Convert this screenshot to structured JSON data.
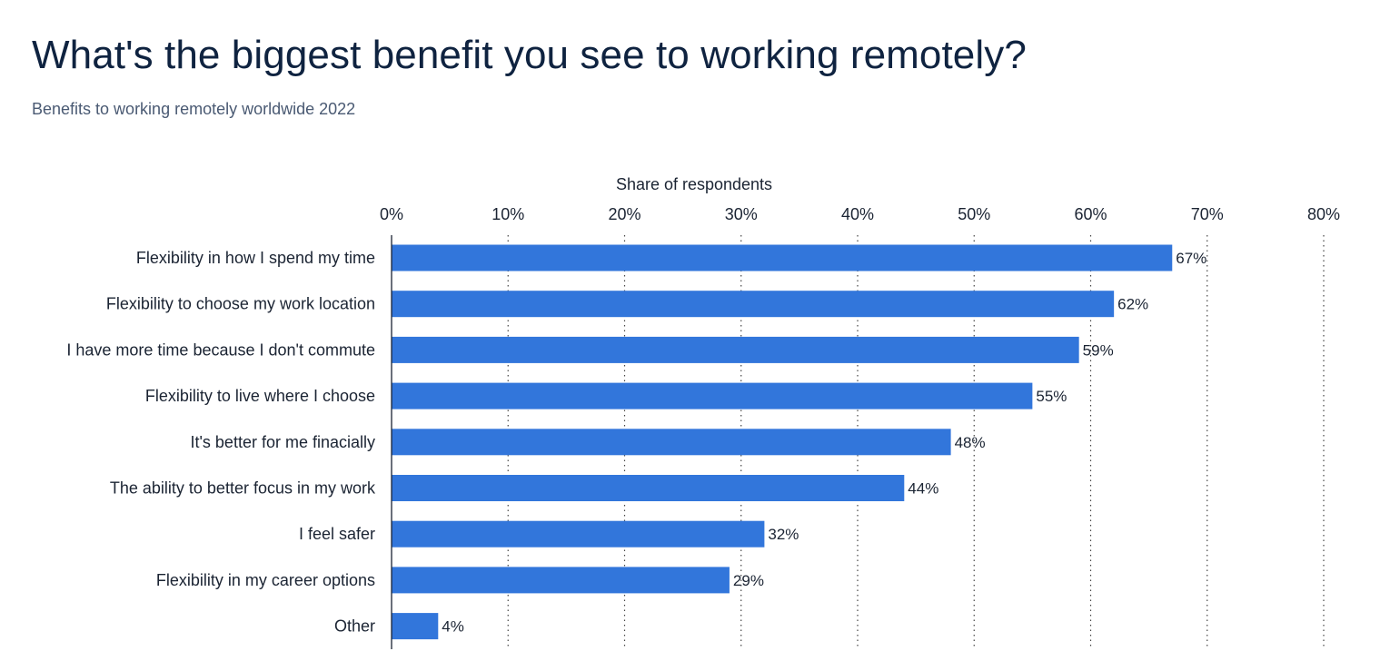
{
  "header": {
    "title": "What's the biggest benefit you see to working remotely?",
    "subtitle": "Benefits to working remotely worldwide 2022"
  },
  "colors": {
    "bar": "#3276db",
    "text": "#1b2433",
    "title": "#0f2340",
    "subtitle": "#4a5a73",
    "grid": "#444444"
  },
  "chart_data": {
    "type": "bar",
    "orientation": "horizontal",
    "title": "What's the biggest benefit you see to working remotely?",
    "subtitle": "Benefits to working remotely worldwide 2022",
    "xlabel": "Share of respondents",
    "xlabel_position": "top",
    "ylabel": "",
    "xlim": [
      0,
      80
    ],
    "x_ticks": [
      0,
      10,
      20,
      30,
      40,
      50,
      60,
      70,
      80
    ],
    "x_tick_labels": [
      "0%",
      "10%",
      "20%",
      "30%",
      "40%",
      "50%",
      "60%",
      "70%",
      "80%"
    ],
    "grid": "vertical-dotted",
    "categories": [
      "Flexibility in how I spend my time",
      "Flexibility to choose my work location",
      "I have more time because I don't commute",
      "Flexibility to live where I choose",
      "It's better for me finacially",
      "The ability to better focus in my work",
      "I feel safer",
      "Flexibility in my career options",
      "Other"
    ],
    "values": [
      67,
      62,
      59,
      55,
      48,
      44,
      32,
      29,
      4
    ],
    "value_labels": [
      "67%",
      "62%",
      "59%",
      "55%",
      "48%",
      "44%",
      "32%",
      "29%",
      "4%"
    ],
    "legend": "none"
  }
}
